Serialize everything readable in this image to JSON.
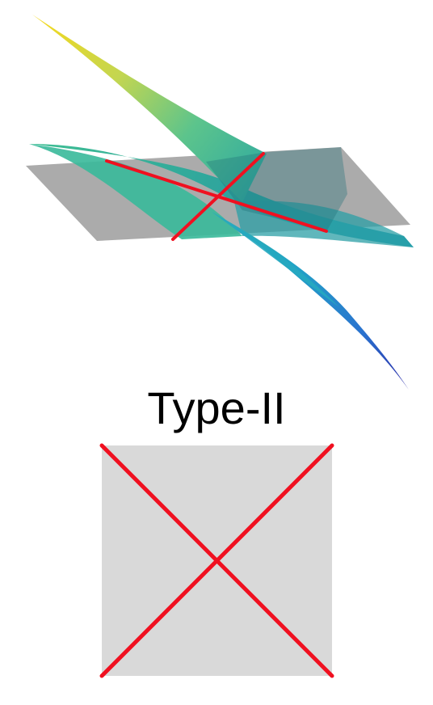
{
  "diagram": {
    "label": "Type-II",
    "colors": {
      "plane_gray": "#9c9c9c",
      "crossing_line_red": "#f01020",
      "schematic_square_fill": "#d9d9d9",
      "surface_yellow": "#f2dc1e",
      "surface_green": "#4cc08a",
      "surface_teal": "#23a6b8",
      "surface_blue": "#2838b8"
    },
    "icons": [
      "saddle-surface-3d",
      "crossing-lines-schematic"
    ]
  }
}
